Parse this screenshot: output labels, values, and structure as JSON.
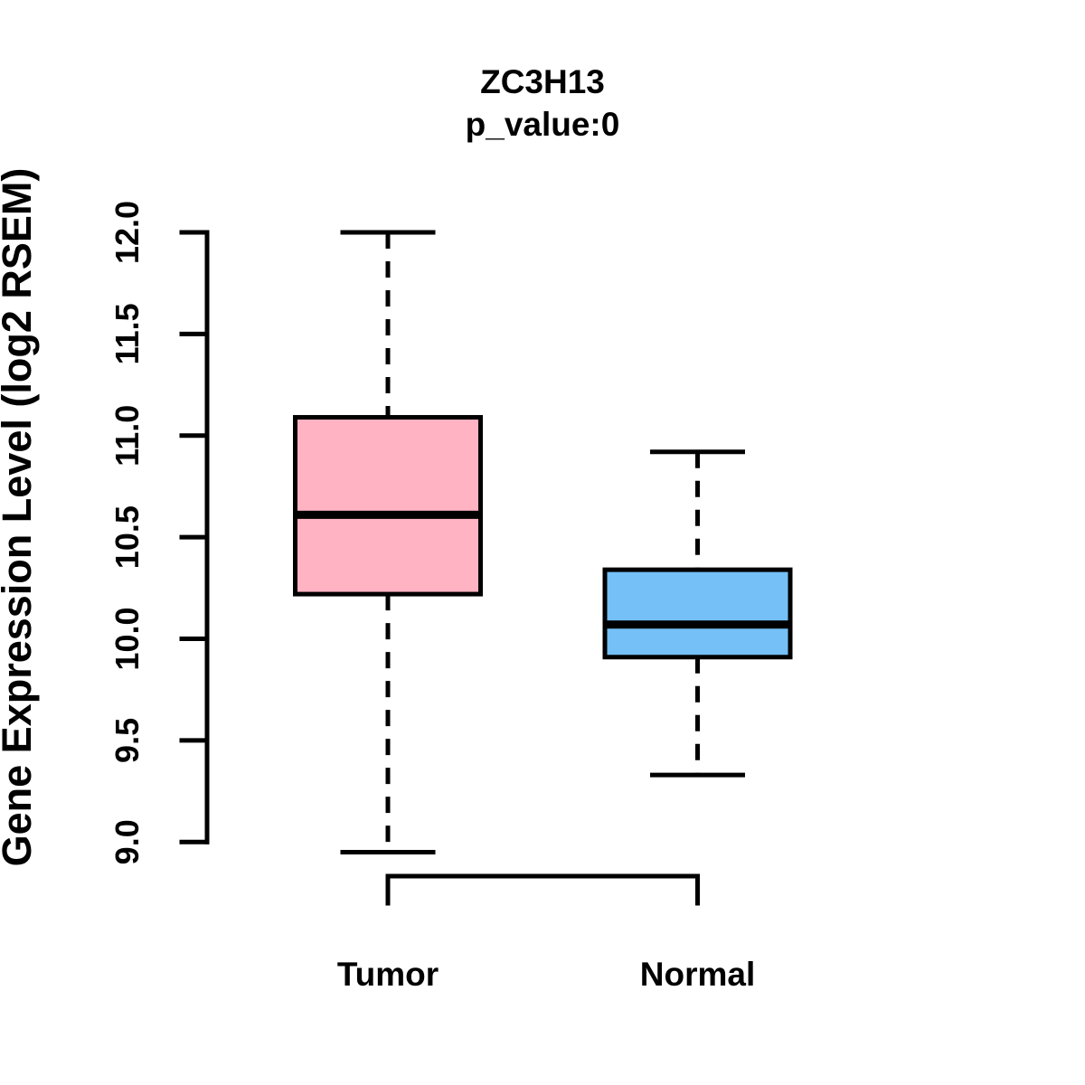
{
  "figure": {
    "background": "#FFFFFF",
    "line_color": "#000000"
  },
  "chart_data": {
    "type": "boxplot",
    "title": "ZC3H13",
    "subtitle": "p_value:0",
    "ylabel": "Gene Expression Level (log2 RSEM)",
    "xlabel": "",
    "ylim": [
      9.0,
      12.0
    ],
    "yticks": [
      9.0,
      9.5,
      10.0,
      10.5,
      11.0,
      11.5,
      12.0
    ],
    "ytick_labels": [
      "9.0",
      "9.5",
      "10.0",
      "10.5",
      "11.0",
      "11.5",
      "12.0"
    ],
    "grid": false,
    "legend": "none",
    "categories": [
      "Tumor",
      "Normal"
    ],
    "groups": [
      {
        "label": "Tumor",
        "color": "#FFB3C3",
        "whisker_low": 8.95,
        "q1": 10.22,
        "median": 10.61,
        "q3": 11.09,
        "whisker_high": 12.0
      },
      {
        "label": "Normal",
        "color": "#74C0F7",
        "whisker_low": 9.33,
        "q1": 9.91,
        "median": 10.07,
        "q3": 10.34,
        "whisker_high": 10.92
      }
    ]
  }
}
